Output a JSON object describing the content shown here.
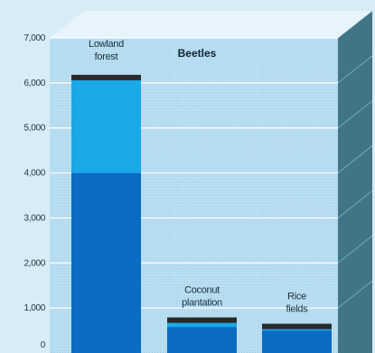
{
  "chart_data": {
    "type": "bar",
    "title": "Beetles",
    "categories": [
      [
        "Lowland",
        "forest"
      ],
      [
        "Coconut",
        "plantation"
      ],
      [
        "Rice",
        "fields"
      ]
    ],
    "series": [
      {
        "values": [
          4000,
          580,
          500
        ]
      },
      {
        "values": [
          2120,
          150,
          90
        ]
      }
    ],
    "ylim": [
      0,
      7000
    ],
    "yticks": [
      "0",
      "1,000",
      "2,000",
      "3,000",
      "4,000",
      "5,000",
      "6,000",
      "7,000"
    ],
    "grid": true,
    "colors": {
      "background": "#d8ecf6",
      "plot_face": "#b9def2",
      "plot_top": "#e7f4fb",
      "plot_side": "#3f7587",
      "gridline": "#ffffff",
      "bar_dark": "#0a6cc2",
      "bar_light": "#19a8e8",
      "bar_cap": "#2a2a2a"
    }
  }
}
